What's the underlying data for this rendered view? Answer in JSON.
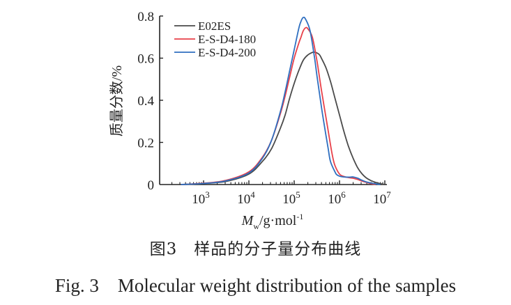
{
  "chart_data": {
    "type": "line",
    "title": "",
    "xlabel": "Mw/g·mol⁻¹",
    "xlabel_parts": {
      "symbol": "M",
      "subscript": "w",
      "unit": "/g·mol",
      "superscript": "-1"
    },
    "ylabel": "质量分数/%",
    "xscale": "log",
    "xlim_log10": [
      2.03,
      7.05
    ],
    "ylim": [
      0,
      0.8
    ],
    "xticks": [
      {
        "exp": 3,
        "label": "10",
        "sup": "3"
      },
      {
        "exp": 4,
        "label": "10",
        "sup": "4"
      },
      {
        "exp": 5,
        "label": "10",
        "sup": "5"
      },
      {
        "exp": 6,
        "label": "10",
        "sup": "6"
      },
      {
        "exp": 7,
        "label": "10",
        "sup": "7"
      }
    ],
    "yticks": [
      {
        "value": 0,
        "label": "0"
      },
      {
        "value": 0.2,
        "label": "0.2"
      },
      {
        "value": 0.4,
        "label": "0.4"
      },
      {
        "value": 0.6,
        "label": "0.6"
      },
      {
        "value": 0.8,
        "label": "0.8"
      }
    ],
    "grid": false,
    "legend_position": "top-left",
    "series": [
      {
        "name": "E02ES",
        "color": "#4a4a4a",
        "x_log10": [
          2.5,
          3.0,
          3.5,
          4.0,
          4.3,
          4.5,
          4.7,
          4.8,
          4.9,
          5.0,
          5.1,
          5.2,
          5.3,
          5.4,
          5.46,
          5.55,
          5.6,
          5.7,
          5.8,
          5.9,
          6.0,
          6.1,
          6.2,
          6.3,
          6.4,
          6.5,
          6.6,
          6.7,
          6.8,
          6.9,
          7.0
        ],
        "y": [
          0.0,
          0.005,
          0.015,
          0.05,
          0.11,
          0.17,
          0.27,
          0.33,
          0.41,
          0.48,
          0.54,
          0.59,
          0.615,
          0.627,
          0.628,
          0.618,
          0.6,
          0.555,
          0.49,
          0.41,
          0.33,
          0.25,
          0.18,
          0.125,
          0.08,
          0.05,
          0.03,
          0.018,
          0.01,
          0.004,
          0.0
        ]
      },
      {
        "name": "E-S-D4-180",
        "color": "#e8414a",
        "x_log10": [
          2.5,
          3.0,
          3.5,
          4.0,
          4.3,
          4.5,
          4.7,
          4.8,
          4.9,
          5.0,
          5.1,
          5.15,
          5.2,
          5.25,
          5.3,
          5.4,
          5.5,
          5.55,
          5.6,
          5.7,
          5.8,
          5.85,
          5.9,
          6.0,
          6.1,
          6.2,
          6.3,
          6.4,
          6.5,
          6.6,
          6.7,
          6.8
        ],
        "y": [
          0.0,
          0.006,
          0.02,
          0.06,
          0.13,
          0.21,
          0.34,
          0.42,
          0.51,
          0.6,
          0.67,
          0.7,
          0.73,
          0.744,
          0.74,
          0.7,
          0.59,
          0.52,
          0.45,
          0.32,
          0.19,
          0.13,
          0.09,
          0.05,
          0.038,
          0.033,
          0.03,
          0.024,
          0.016,
          0.01,
          0.004,
          0.0
        ]
      },
      {
        "name": "E-S-D4-200",
        "color": "#2f6fc0",
        "x_log10": [
          2.5,
          3.0,
          3.5,
          4.0,
          4.3,
          4.5,
          4.7,
          4.8,
          4.9,
          5.0,
          5.1,
          5.15,
          5.2,
          5.25,
          5.35,
          5.45,
          5.5,
          5.6,
          5.65,
          5.75,
          5.8,
          5.9,
          5.95,
          6.05,
          6.2,
          6.3,
          6.4,
          6.5,
          6.6,
          6.75,
          6.9
        ],
        "y": [
          0.0,
          0.005,
          0.018,
          0.055,
          0.125,
          0.21,
          0.35,
          0.44,
          0.54,
          0.64,
          0.74,
          0.775,
          0.793,
          0.785,
          0.73,
          0.6,
          0.52,
          0.37,
          0.3,
          0.17,
          0.11,
          0.06,
          0.045,
          0.037,
          0.035,
          0.036,
          0.03,
          0.02,
          0.012,
          0.005,
          0.0
        ]
      }
    ]
  },
  "captions": {
    "chinese": "图3　样品的分子量分布曲线",
    "english": "Fig. 3　Molecular weight distribution of the samples"
  }
}
